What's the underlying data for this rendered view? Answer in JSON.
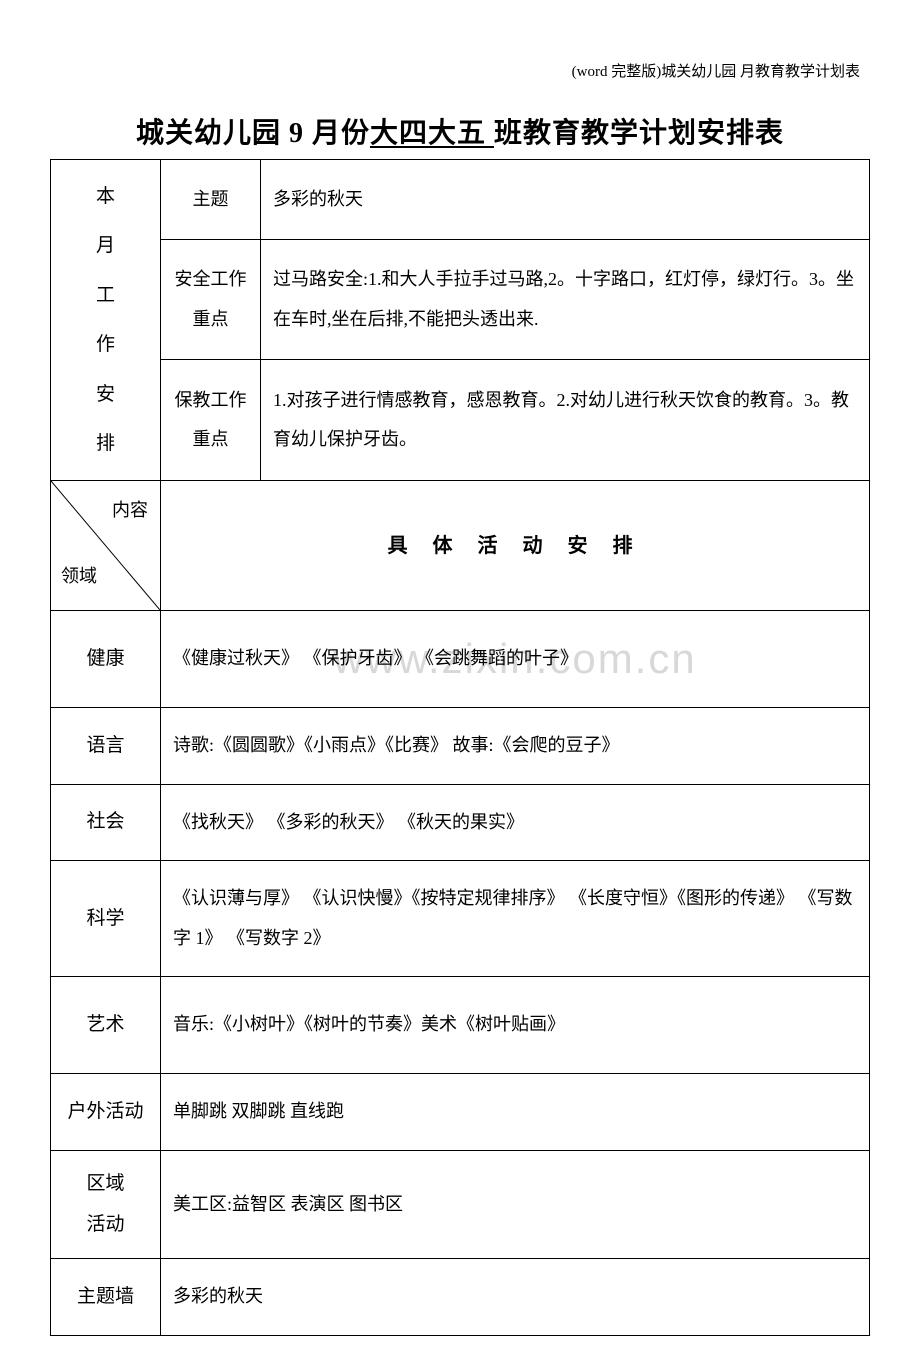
{
  "header_note": "(word 完整版)城关幼儿园 月教育教学计划表",
  "title_prefix": "城关幼儿园 9 月份",
  "title_underline": "大四大五  ",
  "title_suffix": "班教育教学计划安排表",
  "work_arrangement_label": "本\n月\n工\n作\n安\n排",
  "rows_top": [
    {
      "label": "主题",
      "content": "多彩的秋天"
    },
    {
      "label": "安全工作\n重点",
      "content": "过马路安全:1.和大人手拉手过马路,2。十字路口，红灯停，绿灯行。3。坐在车时,坐在后排,不能把头透出来."
    },
    {
      "label": "保教工作\n重点",
      "content": "1.对孩子进行情感教育，感恩教育。2.对幼儿进行秋天饮食的教育。3。教育幼儿保护牙齿。"
    }
  ],
  "diagonal": {
    "top": "内容",
    "bottom": "领域"
  },
  "section_header": "具 体 活 动 安 排",
  "activity_rows": [
    {
      "label": "健康",
      "content": "《健康过秋天》 《保护牙齿》  《会跳舞蹈的叶子》",
      "tall": true,
      "watermark": true
    },
    {
      "label": "语言",
      "content": "诗歌:《圆圆歌》《小雨点》《比赛》  故事:《会爬的豆子》"
    },
    {
      "label": "社会",
      "content": "《找秋天》  《多彩的秋天》  《秋天的果实》"
    },
    {
      "label": "科学",
      "content": "《认识薄与厚》  《认识快慢》《按特定规律排序》  《长度守恒》《图形的传递》  《写数字 1》  《写数字 2》"
    },
    {
      "label": "艺术",
      "content": "音乐:《小树叶》《树叶的节奏》美术《树叶贴画》",
      "tall": true
    },
    {
      "label": "户外活动",
      "content": "单脚跳  双脚跳  直线跑"
    },
    {
      "label": "区域\n活动",
      "content": "美工区:益智区  表演区   图书区"
    },
    {
      "label": "主题墙",
      "content": "多彩的秋天"
    }
  ],
  "watermark_text": "www.zixin.com.cn"
}
